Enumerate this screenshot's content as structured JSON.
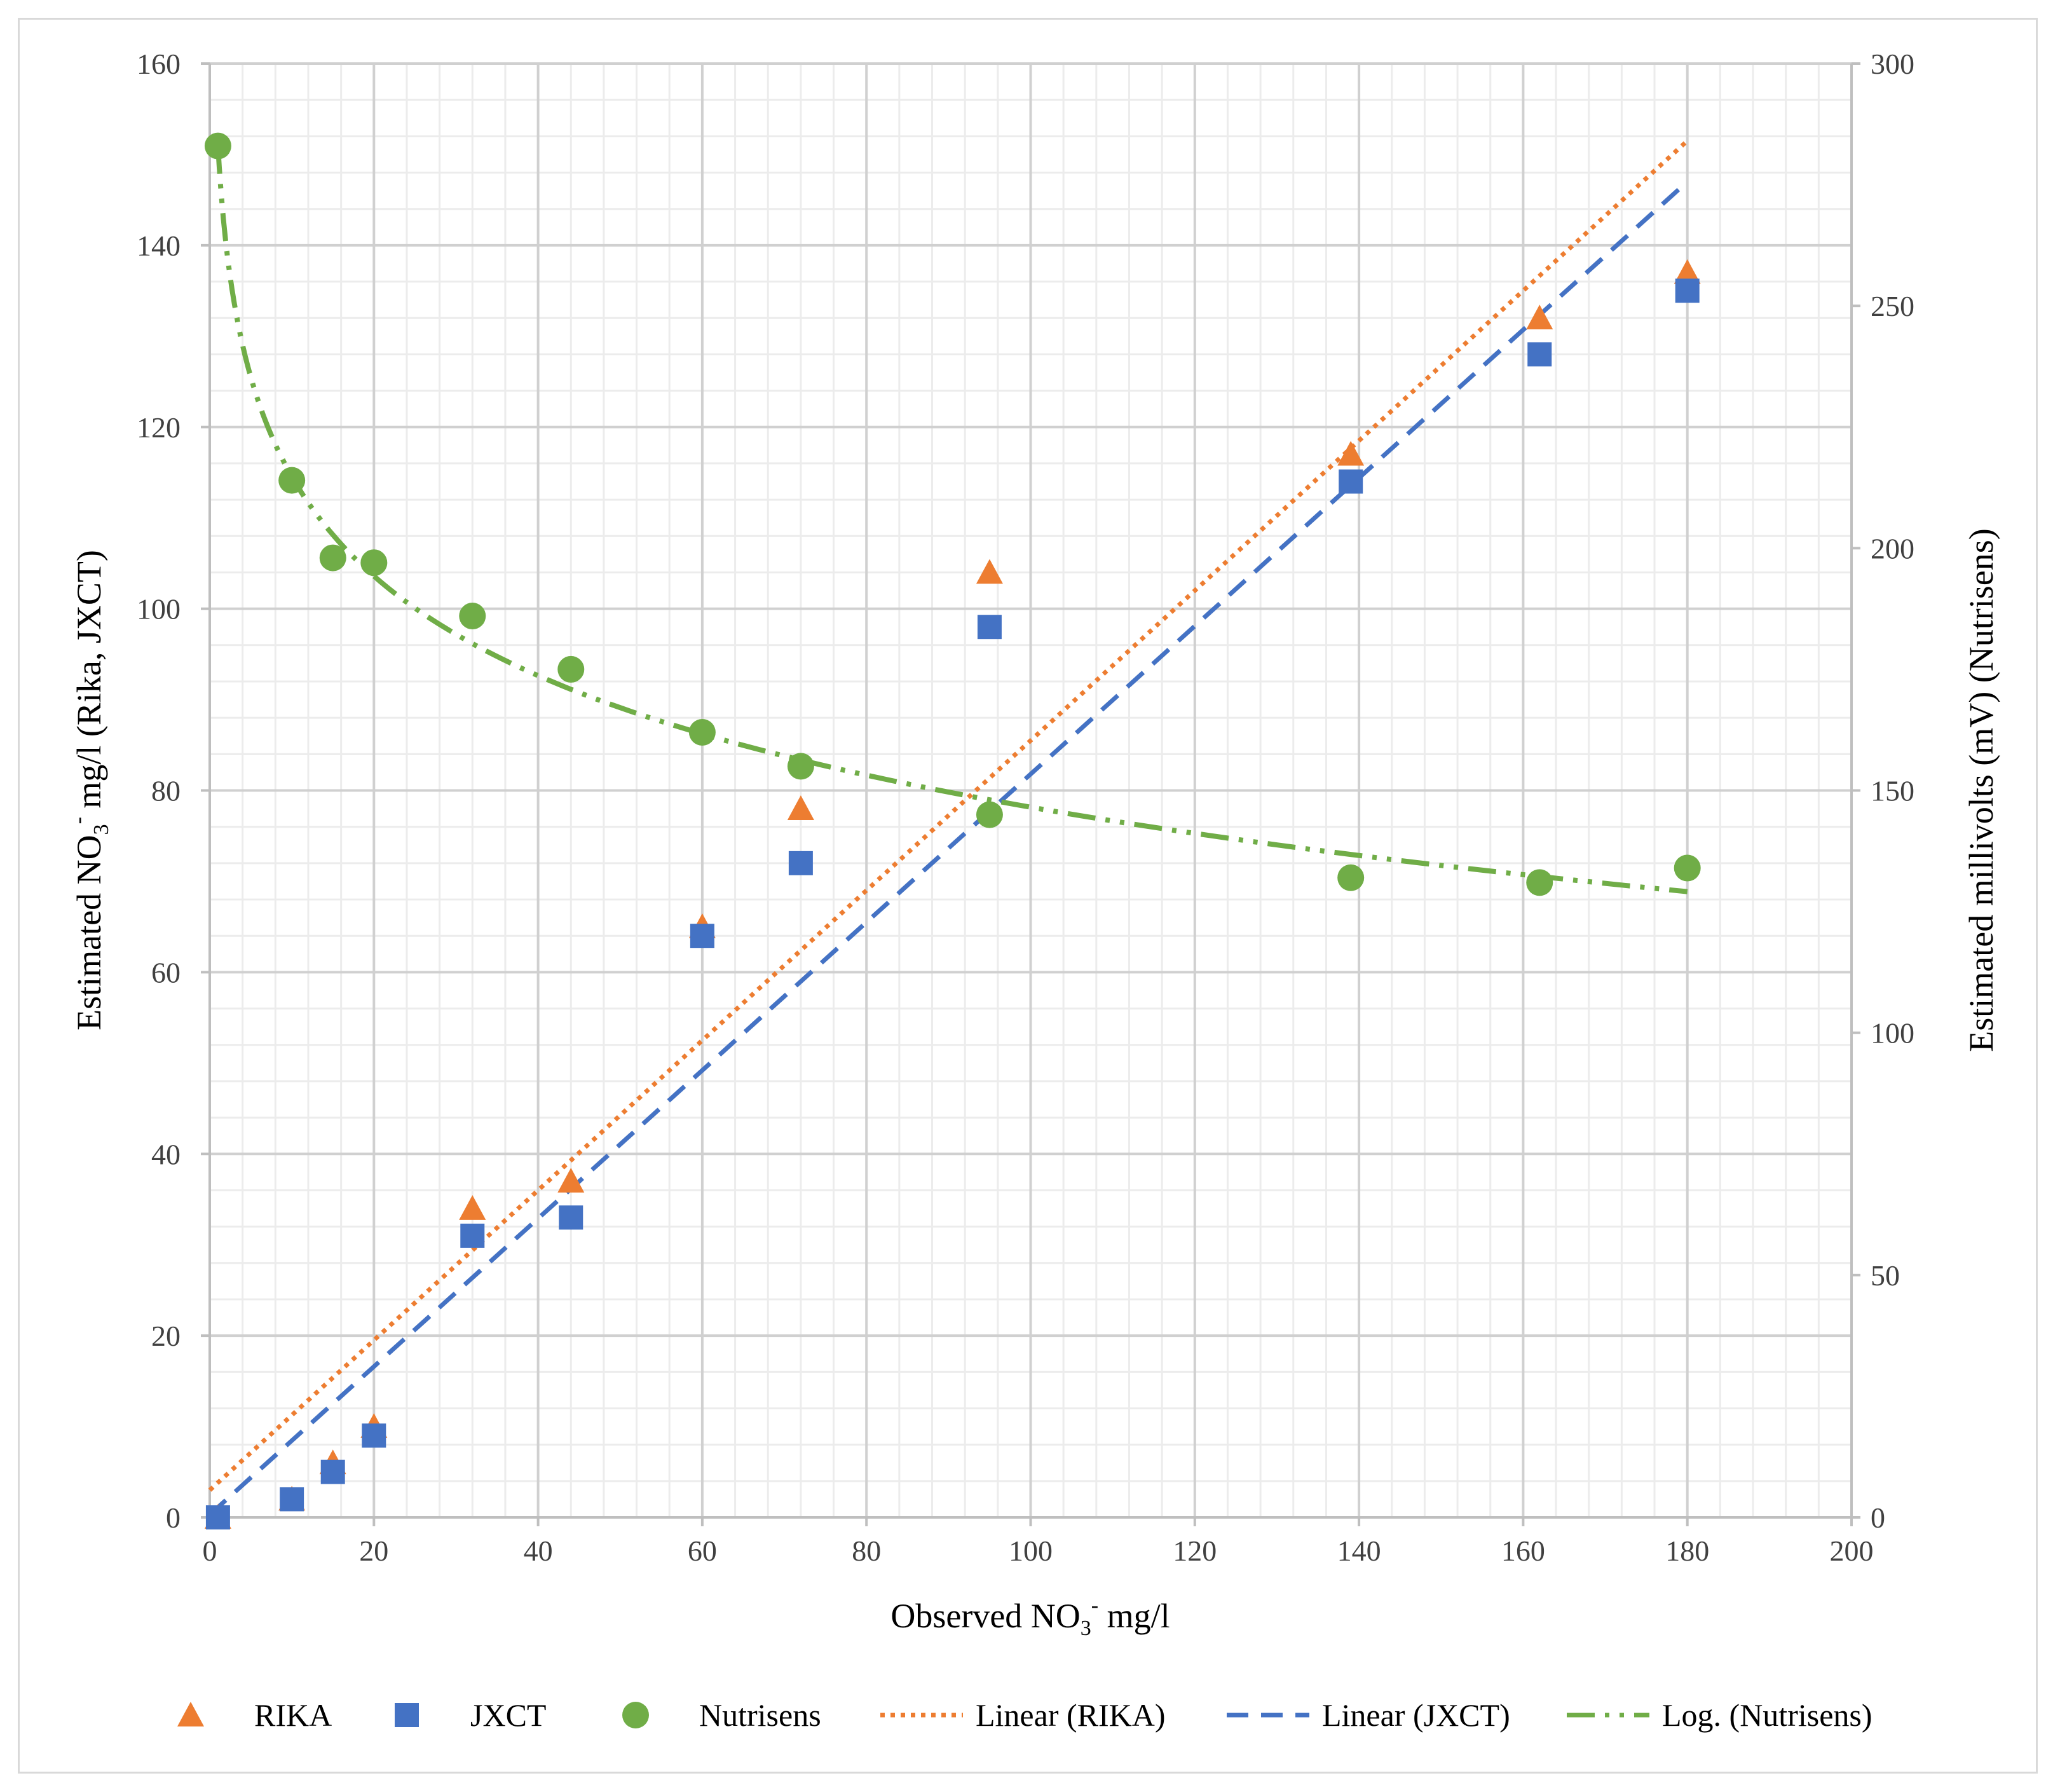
{
  "chart_data": {
    "type": "scatter",
    "title": "",
    "xlabel": {
      "prefix": "Observed  NO",
      "sub": "3",
      "sup": "-",
      "suffix": "  mg/l"
    },
    "ylabel_left": {
      "prefix": "Estimated NO",
      "sub": "3",
      "sup": "-",
      "suffix": " mg/l (Rika, JXCT)"
    },
    "ylabel_right": "Estimated millivolts (mV) (Nutrisens)",
    "xlim": [
      0,
      200
    ],
    "ylim_left": [
      0,
      160
    ],
    "ylim_right": [
      0,
      300
    ],
    "x_ticks": [
      "0",
      "20",
      "40",
      "60",
      "80",
      "100",
      "120",
      "140",
      "160",
      "180",
      "200"
    ],
    "y_left_ticks": [
      "0",
      "20",
      "40",
      "60",
      "80",
      "100",
      "120",
      "140",
      "160"
    ],
    "y_right_ticks": [
      "0",
      "50",
      "100",
      "150",
      "200",
      "250",
      "300"
    ],
    "grid": true,
    "legend_position": "bottom",
    "series": [
      {
        "name": "RIKA",
        "marker": "triangle",
        "color": "#ED7D31",
        "axis": "left",
        "x": [
          1,
          10,
          15,
          20,
          32,
          44,
          60,
          72,
          95,
          139,
          162,
          180
        ],
        "y": [
          0,
          2,
          6,
          10,
          34,
          37,
          65,
          78,
          104,
          117,
          132,
          137
        ]
      },
      {
        "name": "JXCT",
        "marker": "square",
        "color": "#4472C4",
        "axis": "left",
        "x": [
          1,
          10,
          15,
          20,
          32,
          44,
          60,
          72,
          95,
          139,
          162,
          180
        ],
        "y": [
          0,
          2,
          5,
          9,
          31,
          33,
          64,
          72,
          98,
          114,
          128,
          135
        ]
      },
      {
        "name": "Nutrisens",
        "marker": "circle",
        "color": "#70AD47",
        "axis": "right",
        "x": [
          1,
          10,
          15,
          20,
          32,
          44,
          60,
          72,
          95,
          139,
          162,
          180
        ],
        "y": [
          283,
          214,
          198,
          197,
          186,
          175,
          162,
          155,
          145,
          132,
          131,
          134
        ]
      }
    ],
    "trendlines": [
      {
        "name": "Linear (RIKA)",
        "kind": "linear",
        "color": "#ED7D31",
        "style": "dotted",
        "axis": "left",
        "x": [
          0,
          180
        ],
        "y": [
          3,
          151.5
        ]
      },
      {
        "name": "Linear (JXCT)",
        "kind": "linear",
        "color": "#4472C4",
        "style": "dashed",
        "axis": "left",
        "x": [
          0,
          180
        ],
        "y": [
          0.3,
          147
        ]
      },
      {
        "name": "Log. (Nutrisens)",
        "kind": "logarithmic",
        "color": "#70AD47",
        "style": "dash-dot-dot",
        "axis": "right",
        "a": 283,
        "b": -29.63,
        "x_range": [
          1,
          180
        ]
      }
    ]
  }
}
